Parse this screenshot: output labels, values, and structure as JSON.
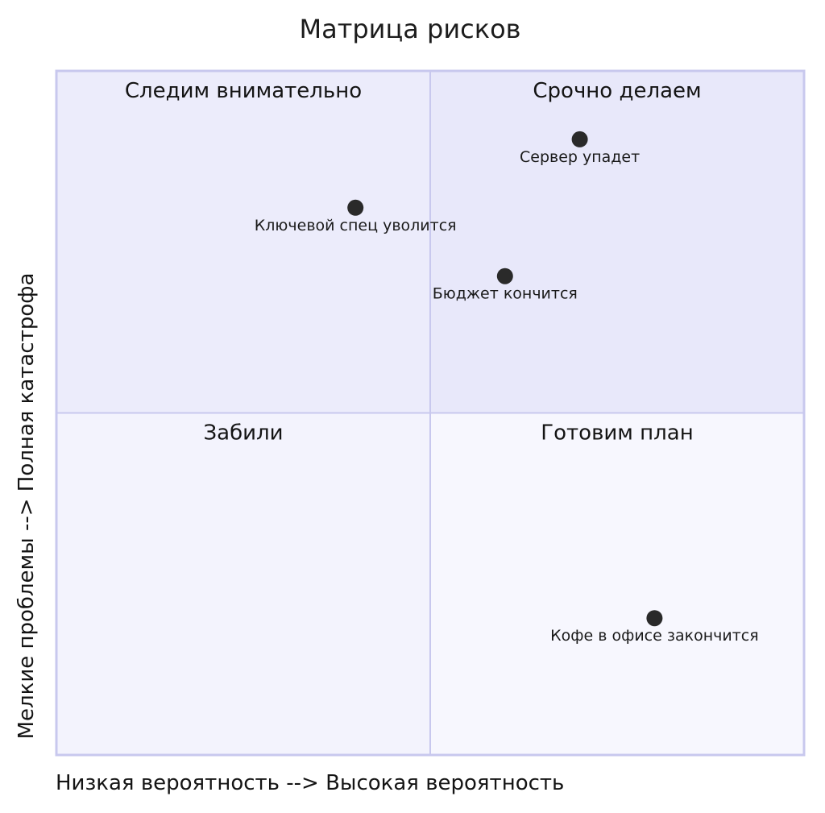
{
  "chart_data": {
    "type": "scatter",
    "title": "Матрица рисков",
    "xlabel": "Низкая вероятность --> Высокая вероятность",
    "ylabel": "Мелкие проблемы --> Полная катастрофа",
    "xlim": [
      0,
      1
    ],
    "ylim": [
      0,
      1
    ],
    "quadrants": {
      "top_left": "Следим внимательно",
      "top_right": "Срочно делаем",
      "bottom_left": "Забили",
      "bottom_right": "Готовим план"
    },
    "points": [
      {
        "label": "Сервер упадет",
        "x": 0.7,
        "y": 0.9
      },
      {
        "label": "Ключевой спец уволится",
        "x": 0.4,
        "y": 0.8
      },
      {
        "label": "Бюджет кончится",
        "x": 0.6,
        "y": 0.7
      },
      {
        "label": "Кофе в офисе закончится",
        "x": 0.8,
        "y": 0.2
      }
    ],
    "colors": {
      "quadrant_top_right": "#e8e8fa",
      "quadrant_top_left": "#ececfb",
      "quadrant_bottom_left": "#f3f3fd",
      "quadrant_bottom_right": "#f7f7fe",
      "border": "#c8c8ee",
      "point": "#2a2a2a"
    }
  }
}
